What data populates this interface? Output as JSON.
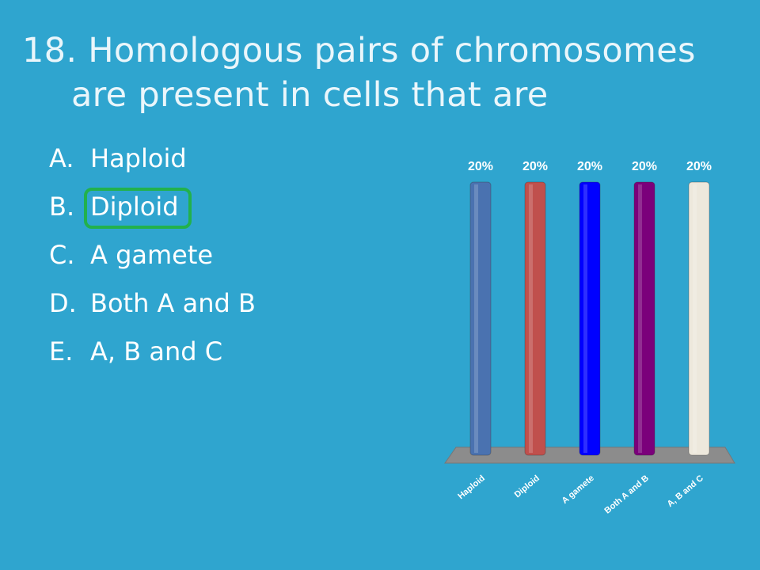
{
  "question": {
    "number": "18.",
    "line1": "Homologous pairs of chromosomes",
    "line2": "are present in cells that are"
  },
  "answers": [
    {
      "letter": "A.",
      "text": "Haploid"
    },
    {
      "letter": "B.",
      "text": "Diploid",
      "highlighted": true
    },
    {
      "letter": "C.",
      "text": "A gamete"
    },
    {
      "letter": "D.",
      "text": "Both A and B"
    },
    {
      "letter": "E.",
      "text": "A, B and C"
    }
  ],
  "colors": {
    "background": "#2fa5cf",
    "highlight": "#22b14c",
    "floor": "#8c8c8c"
  },
  "chart_data": {
    "type": "bar",
    "categories": [
      "Haploid",
      "Diploid",
      "A gamete",
      "Both A and B",
      "A, B and C"
    ],
    "values": [
      20,
      20,
      20,
      20,
      20
    ],
    "labels": [
      "20%",
      "20%",
      "20%",
      "20%",
      "20%"
    ],
    "unit": "%",
    "ylim": [
      0,
      20
    ],
    "colors": [
      "#4a72b0",
      "#c0504d",
      "#0000ff",
      "#7b007b",
      "#ede8dc"
    ],
    "grid": false,
    "legend": false
  }
}
